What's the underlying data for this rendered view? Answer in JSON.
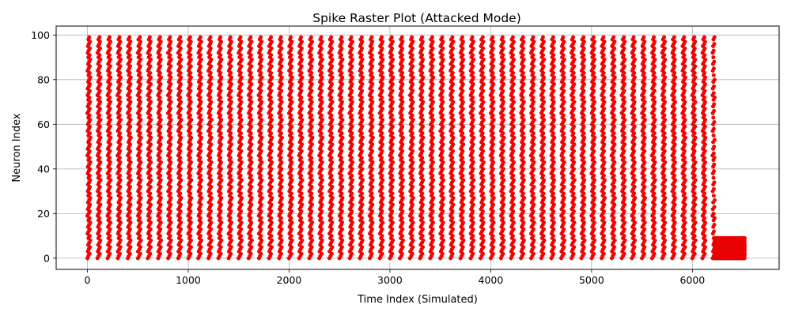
{
  "chart_data": {
    "type": "scatter",
    "title": "Spike Raster Plot (Attacked Mode)",
    "xlabel": "Time Index (Simulated)",
    "ylabel": "Neuron Index",
    "xlim": [
      -310,
      6860
    ],
    "ylim": [
      -5,
      104
    ],
    "xticks": [
      0,
      1000,
      2000,
      3000,
      4000,
      5000,
      6000
    ],
    "yticks": [
      0,
      20,
      40,
      60,
      80,
      100
    ],
    "grid": true,
    "marker_color": "#ff0000",
    "marker_edge_color": "#cc0000",
    "series": [
      {
        "pattern": "normal",
        "neurons": [
          0,
          99
        ],
        "time_range": [
          0,
          6220
        ],
        "burst_period": 100,
        "description_values": "diagonal spike bursts every ~100 time steps across neurons 0-99"
      },
      {
        "pattern": "attacked",
        "neurons": [
          0,
          9
        ],
        "time_range": [
          6220,
          6520
        ],
        "description_values": "dense continuous spiking in neurons 0-9"
      }
    ]
  }
}
